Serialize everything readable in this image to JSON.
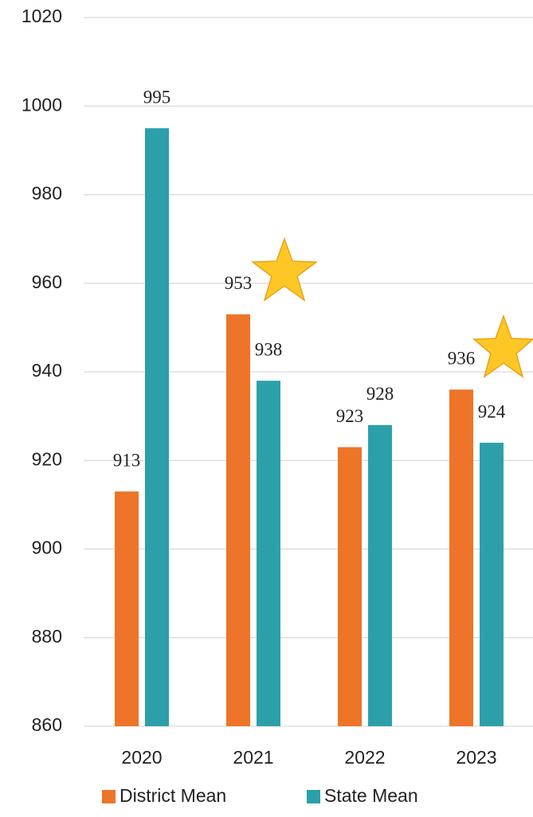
{
  "chart_data": {
    "type": "bar",
    "categories": [
      "2020",
      "2021",
      "2022",
      "2023"
    ],
    "series": [
      {
        "name": "District Mean",
        "color": "#ED7428",
        "values": [
          913,
          953,
          923,
          936
        ]
      },
      {
        "name": "State Mean",
        "color": "#2CA0AA",
        "values": [
          995,
          938,
          928,
          924
        ]
      }
    ],
    "ylim": [
      860,
      1020
    ],
    "yticks": [
      860,
      880,
      900,
      920,
      940,
      960,
      980,
      1000,
      1020
    ],
    "grid": true,
    "legend": "bottom"
  }
}
